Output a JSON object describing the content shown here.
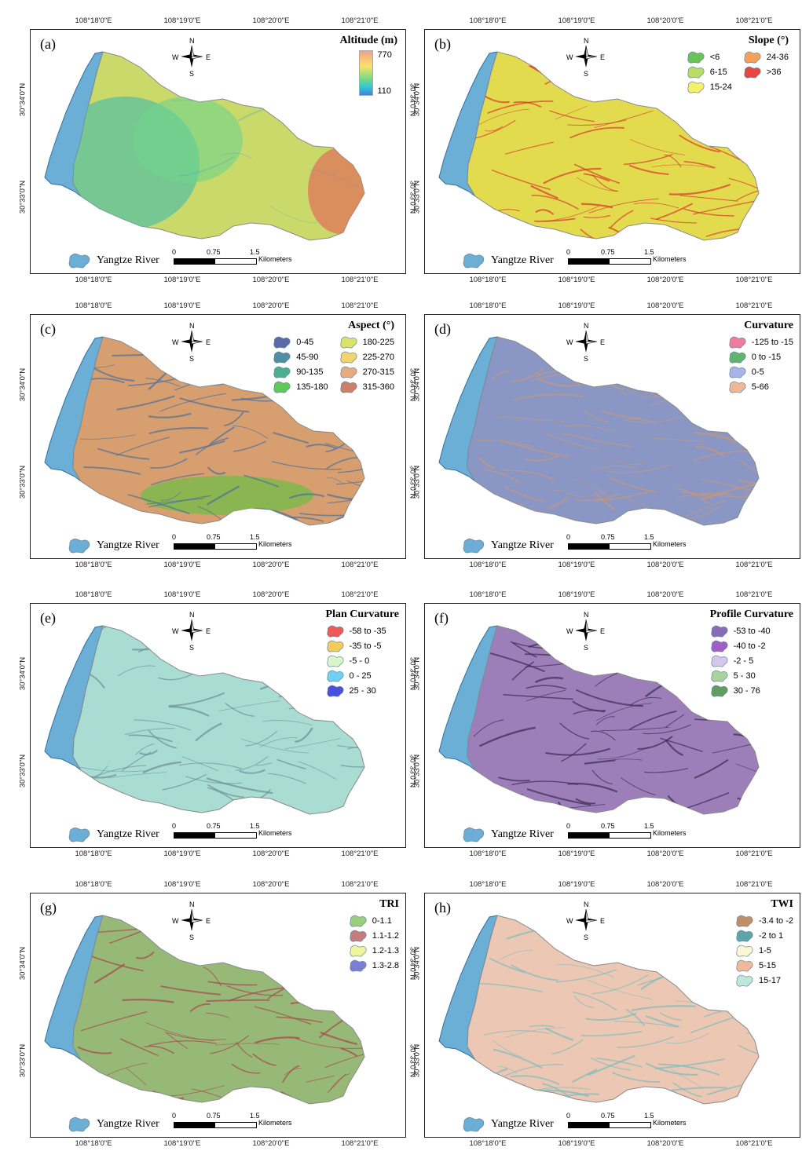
{
  "ticks": {
    "lon": [
      "108°18'0\"E",
      "108°19'0\"E",
      "108°20'0\"E",
      "108°21'0\"E"
    ],
    "lat": [
      "30°34'0\"N",
      "30°33'0\"N"
    ]
  },
  "compass": {
    "n": "N",
    "s": "S",
    "e": "E",
    "w": "W"
  },
  "river_label": "Yangtze River",
  "river_color": "#6baed6",
  "scale": {
    "zero": "0",
    "mid": "0.75",
    "max": "1.5",
    "unit": "Kilometers"
  },
  "panels": [
    {
      "id": "a",
      "label": "(a)",
      "title": "Altitude (m)",
      "gradient": {
        "max": "770",
        "min": "110"
      },
      "fill": "#c9d96a",
      "texture": "#3f9fd3",
      "hotspot": "#e07a5a",
      "items": []
    },
    {
      "id": "b",
      "label": "(b)",
      "title": "Slope (°)",
      "fill": "#e3db4e",
      "texture": "#d9342b",
      "items": [
        {
          "label": "<6",
          "color": "#6cc25a"
        },
        {
          "label": "6-15",
          "color": "#b7dd63"
        },
        {
          "label": "15-24",
          "color": "#f4f06a"
        },
        {
          "label": "24-36",
          "color": "#f2a05c"
        },
        {
          "label": ">36",
          "color": "#e6473f"
        }
      ]
    },
    {
      "id": "c",
      "label": "(c)",
      "title": "Aspect (°)",
      "fill": "#d79e6f",
      "texture": "#4b6f9c",
      "hotspot": "#6bbf45",
      "items": [
        {
          "label": "0-45",
          "color": "#5a6aa8"
        },
        {
          "label": "45-90",
          "color": "#4f8fa5"
        },
        {
          "label": "90-135",
          "color": "#4bae8e"
        },
        {
          "label": "135-180",
          "color": "#5ec95a"
        },
        {
          "label": "180-225",
          "color": "#d9e26a"
        },
        {
          "label": "225-270",
          "color": "#f2d36d"
        },
        {
          "label": "270-315",
          "color": "#e8a97c"
        },
        {
          "label": "315-360",
          "color": "#cc806a"
        }
      ]
    },
    {
      "id": "d",
      "label": "(d)",
      "title": "Curvature",
      "fill": "#8a97c4",
      "texture": "#c6977c",
      "items": [
        {
          "label": "-125 to -15",
          "color": "#ef7b9e"
        },
        {
          "label": "0 to -15",
          "color": "#5fb46d"
        },
        {
          "label": "0-5",
          "color": "#a9b3e6"
        },
        {
          "label": "5-66",
          "color": "#efb795"
        }
      ]
    },
    {
      "id": "e",
      "label": "(e)",
      "title": "Plan Curvature",
      "fill": "#a9dcd3",
      "texture": "#6b8f96",
      "items": [
        {
          "label": "-58 to -35",
          "color": "#ef5a56"
        },
        {
          "label": "-35 to -5",
          "color": "#f3cb5b"
        },
        {
          "label": "-5 - 0",
          "color": "#d9f6c9"
        },
        {
          "label": "0 - 25",
          "color": "#6fd0ef"
        },
        {
          "label": "25 - 30",
          "color": "#4a4ee0"
        }
      ]
    },
    {
      "id": "f",
      "label": "(f)",
      "title": "Profile Curvature",
      "fill": "#9c7fb9",
      "texture": "#3a2a55",
      "items": [
        {
          "label": "-53 to -40",
          "color": "#8a6bb8"
        },
        {
          "label": "-40 to -2",
          "color": "#a25dc6"
        },
        {
          "label": "-2 - 5",
          "color": "#d5c7ec"
        },
        {
          "label": "5 - 30",
          "color": "#a8d39e"
        },
        {
          "label": "30 - 76",
          "color": "#5f9e5f"
        }
      ]
    },
    {
      "id": "g",
      "label": "(g)",
      "title": "TRI",
      "fill": "#97b978",
      "texture": "#a7454d",
      "items": [
        {
          "label": "0-1.1",
          "color": "#9acd7c"
        },
        {
          "label": "1.1-1.2",
          "color": "#c97a7a"
        },
        {
          "label": "1.2-1.3",
          "color": "#eef59a"
        },
        {
          "label": "1.3-2.8",
          "color": "#7a7fd1"
        }
      ]
    },
    {
      "id": "h",
      "label": "(h)",
      "title": "TWI",
      "fill": "#ecc7b3",
      "texture": "#7fbcbc",
      "items": [
        {
          "label": "-3.4 to -2",
          "color": "#c08f6a"
        },
        {
          "label": "-2 to 1",
          "color": "#5fa5a8"
        },
        {
          "label": "1-5",
          "color": "#fbf7d4"
        },
        {
          "label": "5-15",
          "color": "#f3b89a"
        },
        {
          "label": "15-17",
          "color": "#bfe7da"
        }
      ]
    }
  ]
}
